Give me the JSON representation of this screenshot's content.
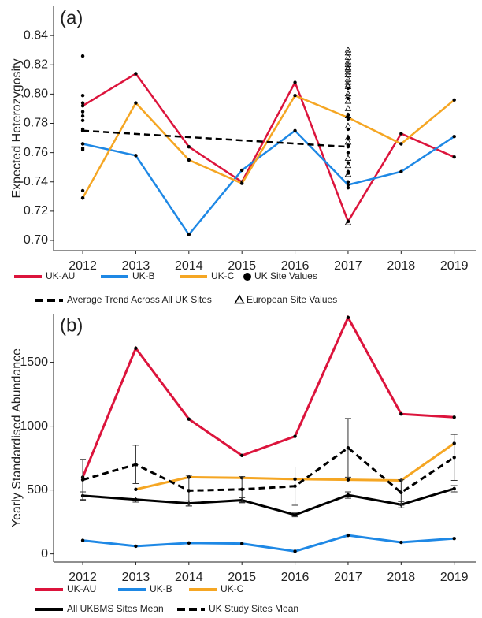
{
  "chart_data": [
    {
      "type": "line",
      "panel_label": "(a)",
      "y_label": "Expected Heterozygosity",
      "x": [
        2012,
        2013,
        2014,
        2015,
        2016,
        2017,
        2018,
        2019
      ],
      "xlim": [
        2011.45,
        2019.42
      ],
      "xticks": [
        2012,
        2013,
        2014,
        2015,
        2016,
        2017,
        2018,
        2019
      ],
      "ylim": [
        0.693,
        0.86
      ],
      "yticks": [
        {
          "value": 0.7,
          "label": "0.70"
        },
        0.72,
        0.74,
        0.76,
        0.78,
        {
          "value": 0.8,
          "label": "0.80"
        },
        0.82,
        0.84
      ],
      "series": [
        {
          "name": "UK-AU",
          "color": "#dc143c",
          "values": [
            0.792,
            0.814,
            0.764,
            0.74,
            0.808,
            0.713,
            0.773,
            0.757
          ]
        },
        {
          "name": "UK-B",
          "color": "#1e88e5",
          "values": [
            0.766,
            0.758,
            0.704,
            0.748,
            0.775,
            0.738,
            0.747,
            0.771
          ]
        },
        {
          "name": "UK-C",
          "color": "#f5a623",
          "values": [
            0.729,
            0.794,
            0.755,
            0.739,
            0.799,
            0.784,
            0.766,
            0.796
          ]
        },
        {
          "name": "UK Site Values",
          "type": "scatter",
          "marker": "circle",
          "color": "#000000",
          "x": [
            2012,
            2012,
            2012,
            2012,
            2012,
            2012,
            2012,
            2012,
            2012,
            2012,
            2012,
            2012,
            2012,
            2017,
            2017,
            2017,
            2017,
            2017,
            2017,
            2017,
            2017,
            2017,
            2017,
            2017,
            2017,
            2017,
            2017
          ],
          "values": [
            0.826,
            0.799,
            0.794,
            0.788,
            0.785,
            0.782,
            0.776,
            0.775,
            0.766,
            0.763,
            0.762,
            0.734,
            0.729,
            0.804,
            0.797,
            0.786,
            0.784,
            0.783,
            0.776,
            0.77,
            0.765,
            0.76,
            0.753,
            0.747,
            0.746,
            0.74,
            0.736
          ]
        },
        {
          "name": "Average Trend Across All UK Sites",
          "style": "dashed",
          "color": "#000000",
          "x": [
            2012,
            2017
          ],
          "values": [
            0.775,
            0.764
          ]
        },
        {
          "name": "European Site Values",
          "type": "scatter",
          "marker": "triangle",
          "color": "#000000",
          "x": [
            2017,
            2017,
            2017,
            2017,
            2017,
            2017,
            2017,
            2017,
            2017,
            2017,
            2017,
            2017,
            2017,
            2017,
            2017,
            2017,
            2017,
            2017,
            2017,
            2017,
            2017,
            2017,
            2017,
            2017,
            2017
          ],
          "values": [
            0.83,
            0.828,
            0.825,
            0.822,
            0.82,
            0.818,
            0.817,
            0.815,
            0.813,
            0.81,
            0.808,
            0.806,
            0.805,
            0.8,
            0.798,
            0.795,
            0.79,
            0.785,
            0.778,
            0.77,
            0.767,
            0.756,
            0.751,
            0.745,
            0.712
          ]
        }
      ]
    },
    {
      "type": "line",
      "panel_label": "(b)",
      "y_label": "Yearly Standardised Abundance",
      "x": [
        2012,
        2013,
        2014,
        2015,
        2016,
        2017,
        2018,
        2019
      ],
      "xlim": [
        2011.45,
        2019.42
      ],
      "xticks": [
        2012,
        2013,
        2014,
        2015,
        2016,
        2017,
        2018,
        2019
      ],
      "ylim": [
        -64,
        1880
      ],
      "yticks": [
        0,
        500,
        1000,
        1500
      ],
      "series": [
        {
          "name": "UK-AU",
          "color": "#dc143c",
          "values": [
            600,
            1610,
            1055,
            770,
            920,
            1850,
            1095,
            1070
          ]
        },
        {
          "name": "UK-B",
          "color": "#1e88e5",
          "values": [
            105,
            60,
            85,
            80,
            20,
            145,
            90,
            120
          ]
        },
        {
          "name": "UK-C",
          "color": "#f5a623",
          "values": [
            null,
            505,
            600,
            595,
            585,
            580,
            575,
            865
          ]
        },
        {
          "name": "All UKBMS Sites Mean",
          "color": "#000000",
          "values": [
            455,
            425,
            395,
            420,
            305,
            460,
            385,
            510
          ],
          "errors": [
            30,
            20,
            20,
            20,
            15,
            25,
            25,
            25
          ]
        },
        {
          "name": "UK Study Sites Mean",
          "style": "dashed",
          "color": "#000000",
          "values": [
            580,
            700,
            495,
            505,
            530,
            830,
            480,
            755
          ],
          "errors": [
            160,
            150,
            120,
            100,
            150,
            230,
            100,
            180
          ]
        }
      ]
    }
  ]
}
